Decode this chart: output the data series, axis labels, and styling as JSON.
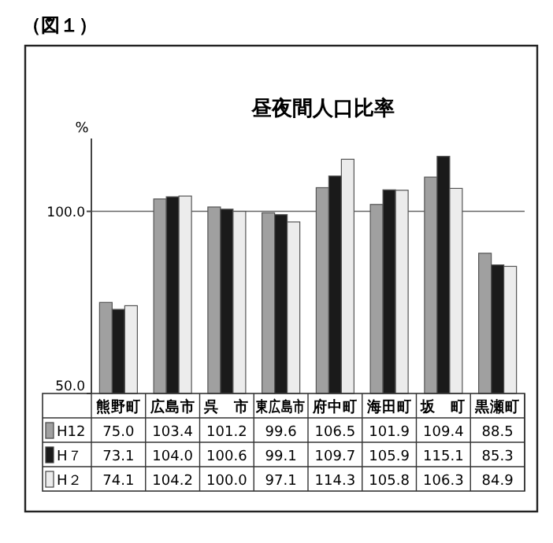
{
  "chart_data": {
    "type": "bar",
    "title": "昼夜間人口比率",
    "ylabel": "%",
    "annotations": [
      "（図１）"
    ],
    "categories": [
      "熊野町",
      "広島市",
      "呉　市",
      "東広島市",
      "府中町",
      "海田町",
      "坂　町",
      "黒瀬町"
    ],
    "series": [
      {
        "name": "H12",
        "color": "#a0a0a0",
        "values": [
          75.0,
          103.4,
          101.2,
          99.6,
          106.5,
          101.9,
          109.4,
          88.5
        ],
        "value_labels": [
          "75.0",
          "103.4",
          "101.2",
          "99.6",
          "106.5",
          "101.9",
          "109.4",
          "88.5"
        ]
      },
      {
        "name": "H７",
        "color": "#1a1a1a",
        "values": [
          73.1,
          104.0,
          100.6,
          99.1,
          109.7,
          105.9,
          115.1,
          85.3
        ],
        "value_labels": [
          "73.1",
          "104.0",
          "100.6",
          "99.1",
          "109.7",
          "105.9",
          "115.1",
          "85.3"
        ]
      },
      {
        "name": "H２",
        "color": "#ececec",
        "values": [
          74.1,
          104.2,
          100.0,
          97.1,
          114.3,
          105.8,
          106.3,
          84.9
        ],
        "value_labels": [
          "74.1",
          "104.2",
          "100.0",
          "97.1",
          "114.3",
          "105.8",
          "106.3",
          "84.9"
        ]
      }
    ],
    "ylim": [
      50,
      120
    ],
    "yticks": [
      {
        "value": 50,
        "label": "50.0"
      },
      {
        "value": 100,
        "label": "100.0"
      }
    ],
    "grid": "y",
    "legend": "bottom"
  }
}
